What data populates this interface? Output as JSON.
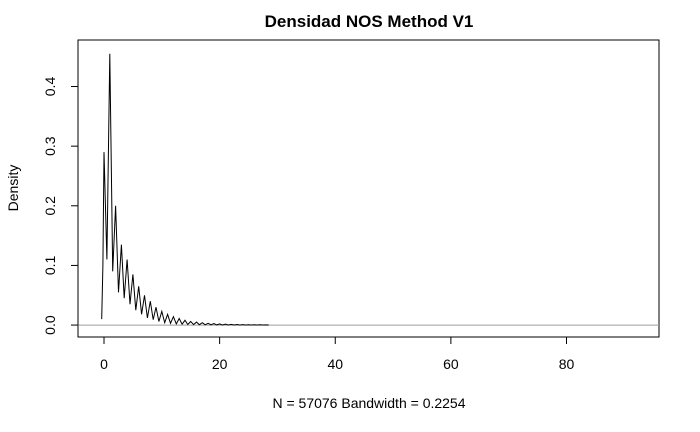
{
  "chart_data": {
    "type": "line",
    "title": "Densidad NOS Method V1",
    "xlabel": "N = 57076   Bandwidth = 0.2254",
    "ylabel": "Density",
    "xlim": [
      -4.5,
      96
    ],
    "ylim": [
      -0.02,
      0.478
    ],
    "x_ticks": [
      0,
      20,
      40,
      60,
      80
    ],
    "x_tick_labels": [
      "0",
      "20",
      "40",
      "60",
      "80"
    ],
    "y_ticks": [
      0.0,
      0.1,
      0.2,
      0.3,
      0.4
    ],
    "y_tick_labels": [
      "0.0",
      "0.1",
      "0.2",
      "0.3",
      "0.4"
    ],
    "baseline": 0,
    "peaks": {
      "x": [
        0,
        1,
        2,
        3,
        4,
        5,
        6,
        7,
        8,
        9,
        10,
        11,
        12,
        13,
        14,
        15,
        16,
        17,
        18,
        19,
        20,
        21,
        22,
        23,
        24,
        25,
        26,
        27,
        28
      ],
      "y": [
        0.29,
        0.455,
        0.2,
        0.135,
        0.11,
        0.085,
        0.065,
        0.05,
        0.04,
        0.03,
        0.023,
        0.018,
        0.014,
        0.011,
        0.008,
        0.006,
        0.005,
        0.004,
        0.003,
        0.0025,
        0.002,
        0.0015,
        0.0012,
        0.001,
        0.0008,
        0.0006,
        0.0005,
        0.0004,
        0.0003
      ]
    },
    "troughs": {
      "x": [
        0.5,
        1.5,
        2.5,
        3.5,
        4.5,
        5.5,
        6.5,
        7.5,
        8.5,
        9.5,
        10.5,
        11.5,
        12.5,
        13.5,
        14.5,
        15.5,
        16.5,
        17.5,
        18.5,
        19.5,
        20.5,
        21.5,
        22.5,
        23.5,
        24.5,
        25.5,
        26.5,
        27.5
      ],
      "y": [
        0.11,
        0.09,
        0.055,
        0.045,
        0.035,
        0.025,
        0.018,
        0.012,
        0.009,
        0.006,
        0.004,
        0.003,
        0.002,
        0.0015,
        0.001,
        0.0008,
        0.0006,
        0.0005,
        0.0004,
        0.0003,
        0.0002,
        0.0002,
        0.0001,
        0.0001,
        0.0001,
        0.0001,
        0.0001,
        0.0001
      ]
    }
  }
}
